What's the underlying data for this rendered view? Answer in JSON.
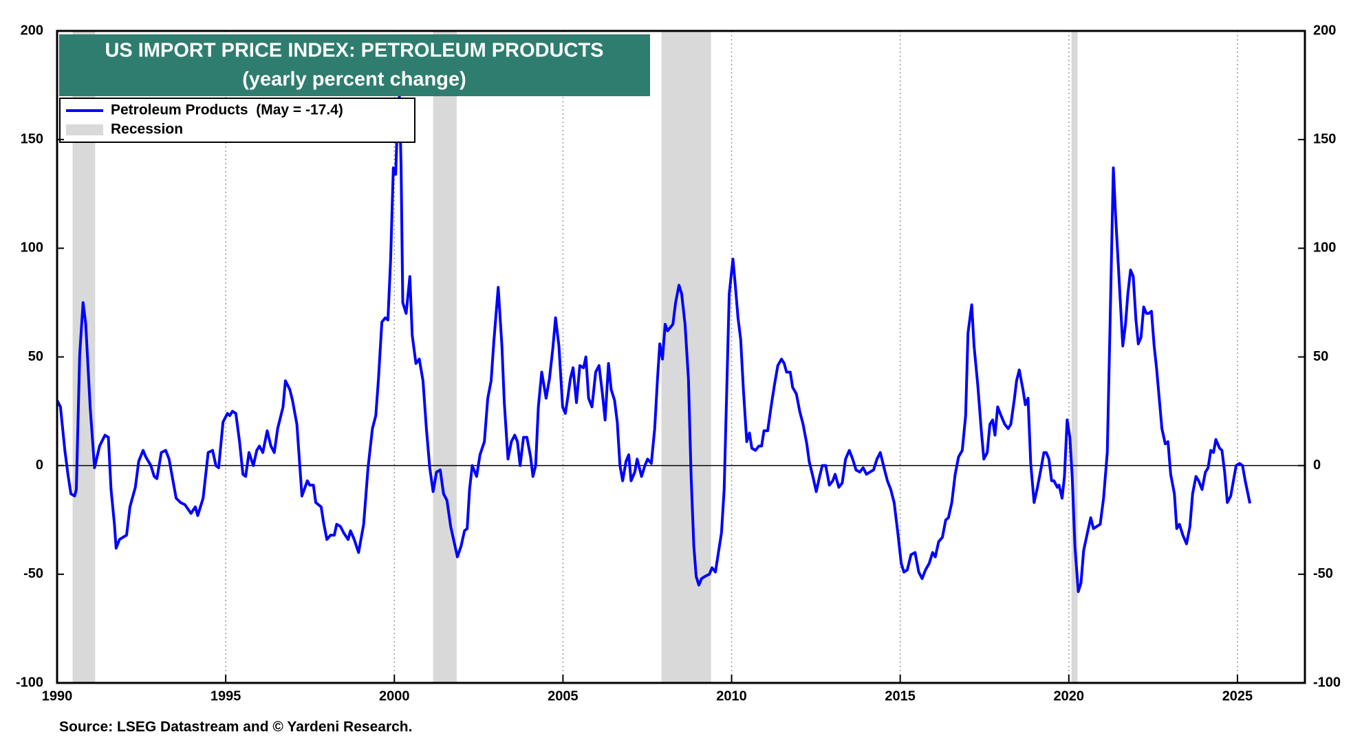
{
  "chart_data": {
    "type": "line",
    "title": "US IMPORT PRICE INDEX: PETROLEUM PRODUCTS",
    "subtitle": "(yearly percent change)",
    "source": "Source: LSEG Datastream and © Yardeni Research.",
    "title_color": "#2e7d6e",
    "grid": "x",
    "xlim": [
      1990,
      2027
    ],
    "xticks": [
      1990,
      1995,
      2000,
      2005,
      2010,
      2015,
      2020,
      2025
    ],
    "ylim": [
      -100,
      200
    ],
    "yticks": [
      -100,
      -50,
      0,
      50,
      100,
      150,
      200
    ],
    "y2lim": [
      -100,
      200
    ],
    "y2ticks": [
      -100,
      -50,
      0,
      50,
      100,
      150,
      200
    ],
    "recessions": {
      "name": "Recession",
      "color": "#d9d9d9",
      "ranges": [
        [
          1990.46,
          1991.13
        ],
        [
          2001.15,
          2001.85
        ],
        [
          2007.92,
          2009.39
        ],
        [
          2020.08,
          2020.26
        ]
      ]
    },
    "x": [
      1990.0,
      1990.1,
      1990.23,
      1990.33,
      1990.41,
      1990.52,
      1990.57,
      1990.67,
      1990.77,
      1990.85,
      1990.98,
      1991.11,
      1991.26,
      1991.42,
      1991.52,
      1991.6,
      1991.7,
      1991.75,
      1991.85,
      1992.06,
      1992.16,
      1992.32,
      1992.42,
      1992.55,
      1992.63,
      1992.78,
      1992.88,
      1992.96,
      1993.09,
      1993.22,
      1993.32,
      1993.53,
      1993.66,
      1993.79,
      1993.97,
      1994.1,
      1994.17,
      1994.33,
      1994.48,
      1994.61,
      1994.71,
      1994.79,
      1994.92,
      1995.05,
      1995.12,
      1995.2,
      1995.3,
      1995.41,
      1995.51,
      1995.59,
      1995.69,
      1995.82,
      1995.92,
      1996.0,
      1996.1,
      1996.23,
      1996.34,
      1996.44,
      1996.54,
      1996.7,
      1996.77,
      1996.9,
      1996.98,
      1997.11,
      1997.26,
      1997.42,
      1997.49,
      1997.6,
      1997.67,
      1997.83,
      1997.9,
      1998.0,
      1998.11,
      1998.22,
      1998.29,
      1998.4,
      1998.5,
      1998.63,
      1998.7,
      1998.81,
      1998.94,
      1999.09,
      1999.22,
      1999.35,
      1999.45,
      1999.53,
      1999.63,
      1999.73,
      1999.81,
      1999.89,
      1999.97,
      2000.04,
      2000.1,
      2000.15,
      2000.2,
      2000.25,
      2000.35,
      2000.46,
      2000.53,
      2000.64,
      2000.74,
      2000.85,
      2000.95,
      2001.05,
      2001.15,
      2001.25,
      2001.36,
      2001.46,
      2001.56,
      2001.67,
      2001.87,
      2001.98,
      2002.08,
      2002.16,
      2002.23,
      2002.31,
      2002.44,
      2002.54,
      2002.67,
      2002.77,
      2002.87,
      2002.95,
      2003.08,
      2003.19,
      2003.26,
      2003.37,
      2003.47,
      2003.57,
      2003.65,
      2003.73,
      2003.83,
      2003.93,
      2004.04,
      2004.11,
      2004.19,
      2004.27,
      2004.37,
      2004.5,
      2004.6,
      2004.7,
      2004.78,
      2004.88,
      2004.99,
      2005.07,
      2005.14,
      2005.22,
      2005.3,
      2005.4,
      2005.5,
      2005.61,
      2005.68,
      2005.76,
      2005.86,
      2005.97,
      2006.07,
      2006.17,
      2006.25,
      2006.35,
      2006.43,
      2006.53,
      2006.61,
      2006.69,
      2006.77,
      2006.87,
      2006.95,
      2007.02,
      2007.13,
      2007.2,
      2007.33,
      2007.43,
      2007.51,
      2007.62,
      2007.72,
      2007.8,
      2007.87,
      2007.95,
      2008.03,
      2008.1,
      2008.26,
      2008.34,
      2008.44,
      2008.52,
      2008.62,
      2008.72,
      2008.8,
      2008.88,
      2008.95,
      2009.03,
      2009.11,
      2009.21,
      2009.34,
      2009.42,
      2009.52,
      2009.6,
      2009.7,
      2009.78,
      2009.86,
      2009.93,
      2010.04,
      2010.11,
      2010.19,
      2010.27,
      2010.35,
      2010.45,
      2010.53,
      2010.6,
      2010.71,
      2010.81,
      2010.89,
      2010.96,
      2011.07,
      2011.17,
      2011.27,
      2011.37,
      2011.48,
      2011.56,
      2011.63,
      2011.74,
      2011.81,
      2011.92,
      2012.02,
      2012.12,
      2012.23,
      2012.3,
      2012.41,
      2012.51,
      2012.61,
      2012.69,
      2012.79,
      2012.9,
      2013.0,
      2013.07,
      2013.18,
      2013.28,
      2013.38,
      2013.49,
      2013.59,
      2013.69,
      2013.8,
      2013.9,
      2014.0,
      2014.1,
      2014.21,
      2014.31,
      2014.41,
      2014.52,
      2014.62,
      2014.72,
      2014.82,
      2014.93,
      2015.03,
      2015.11,
      2015.21,
      2015.32,
      2015.44,
      2015.55,
      2015.65,
      2015.75,
      2015.86,
      2015.96,
      2016.04,
      2016.14,
      2016.25,
      2016.35,
      2016.43,
      2016.53,
      2016.63,
      2016.73,
      2016.84,
      2016.94,
      2017.01,
      2017.12,
      2017.19,
      2017.3,
      2017.4,
      2017.48,
      2017.58,
      2017.66,
      2017.74,
      2017.81,
      2017.89,
      2017.99,
      2018.1,
      2018.2,
      2018.28,
      2018.38,
      2018.45,
      2018.53,
      2018.64,
      2018.71,
      2018.79,
      2018.87,
      2018.97,
      2019.07,
      2019.18,
      2019.26,
      2019.33,
      2019.41,
      2019.49,
      2019.56,
      2019.66,
      2019.71,
      2019.8,
      2019.87,
      2019.95,
      2020.03,
      2020.1,
      2020.18,
      2020.28,
      2020.36,
      2020.44,
      2020.55,
      2020.65,
      2020.73,
      2020.83,
      2020.93,
      2021.03,
      2021.14,
      2021.22,
      2021.32,
      2021.39,
      2021.5,
      2021.6,
      2021.68,
      2021.75,
      2021.83,
      2021.91,
      2021.99,
      2022.06,
      2022.14,
      2022.22,
      2022.3,
      2022.37,
      2022.45,
      2022.53,
      2022.6,
      2022.68,
      2022.76,
      2022.86,
      2022.94,
      2023.02,
      2023.13,
      2023.2,
      2023.28,
      2023.38,
      2023.49,
      2023.59,
      2023.67,
      2023.77,
      2023.85,
      2023.95,
      2024.05,
      2024.13,
      2024.21,
      2024.29,
      2024.36,
      2024.47,
      2024.54,
      2024.62,
      2024.7,
      2024.8,
      2024.88,
      2024.96,
      2025.06,
      2025.15,
      2025.23,
      2025.37
    ],
    "series": [
      {
        "name": "Petroleum Products  (May = -17.4)",
        "color": "#0000ff",
        "values": [
          30,
          27,
          7,
          -5,
          -13,
          -14,
          -11,
          51,
          75,
          65,
          27,
          -1,
          9,
          14,
          13,
          -11,
          -27,
          -38,
          -34,
          -32,
          -19,
          -10,
          2,
          7,
          4,
          0,
          -5,
          -6,
          6,
          7,
          3,
          -15,
          -17,
          -18,
          -22,
          -19,
          -23,
          -15,
          6,
          7,
          0,
          -1,
          20,
          24,
          23,
          25,
          24,
          11,
          -4,
          -5,
          6,
          0,
          7,
          9,
          6,
          16,
          9,
          6,
          17,
          27,
          39,
          35,
          30,
          19,
          -14,
          -7,
          -9,
          -9,
          -17,
          -19,
          -26,
          -34,
          -32,
          -32,
          -27,
          -28,
          -31,
          -34,
          -30,
          -34,
          -40,
          -27,
          -1,
          17,
          23,
          40,
          66,
          68,
          67,
          95,
          137,
          134,
          162,
          170,
          138,
          75,
          70,
          87,
          60,
          47,
          49,
          39,
          17,
          -1,
          -12,
          -3,
          -2,
          -13,
          -16,
          -28,
          -42,
          -37,
          -30,
          -29,
          -11,
          0,
          -5,
          5,
          11,
          31,
          39,
          57,
          82,
          55,
          29,
          3,
          11,
          14,
          11,
          0,
          13,
          13,
          4,
          -5,
          0,
          27,
          43,
          31,
          40,
          54,
          68,
          55,
          27,
          24,
          31,
          40,
          45,
          29,
          46,
          45,
          50,
          31,
          27,
          43,
          46,
          33,
          21,
          47,
          35,
          30,
          20,
          0,
          -7,
          2,
          5,
          -7,
          -3,
          3,
          -5,
          0,
          3,
          1,
          17,
          39,
          56,
          49,
          65,
          62,
          65,
          75,
          83,
          79,
          65,
          40,
          -5,
          -37,
          -51,
          -55,
          -52,
          -51,
          -50,
          -47,
          -49,
          -41,
          -31,
          -11,
          37,
          79,
          95,
          83,
          68,
          58,
          35,
          11,
          15,
          8,
          7,
          9,
          9,
          16,
          16,
          27,
          37,
          46,
          49,
          47,
          43,
          43,
          36,
          33,
          25,
          19,
          10,
          2,
          -5,
          -12,
          -5,
          0,
          0,
          -9,
          -7,
          -4,
          -10,
          -8,
          3,
          7,
          3,
          -2,
          -3,
          -1,
          -4,
          -3,
          -2,
          3,
          6,
          -1,
          -7,
          -11,
          -17,
          -31,
          -45,
          -49,
          -48,
          -41,
          -40,
          -49,
          -52,
          -48,
          -45,
          -40,
          -42,
          -35,
          -33,
          -25,
          -24,
          -17,
          -4,
          4,
          7,
          23,
          61,
          74,
          55,
          37,
          17,
          3,
          6,
          19,
          21,
          14,
          27,
          23,
          19,
          17,
          19,
          30,
          39,
          44,
          35,
          28,
          31,
          1,
          -17,
          -10,
          -1,
          6,
          6,
          3,
          -7,
          -7,
          -10,
          -9,
          -15,
          -5,
          21,
          13,
          -5,
          -37,
          -58,
          -54,
          -39,
          -31,
          -24,
          -29,
          -28,
          -27,
          -15,
          6,
          63,
          137,
          114,
          83,
          55,
          65,
          79,
          90,
          87,
          67,
          56,
          59,
          73,
          70,
          70,
          71,
          55,
          45,
          31,
          17,
          10,
          11,
          -4,
          -13,
          -29,
          -27,
          -32,
          -36,
          -28,
          -13,
          -5,
          -7,
          -11,
          -3,
          -1,
          7,
          6,
          12,
          8,
          7,
          -3,
          -17,
          -14,
          -7,
          0,
          1,
          0,
          -7,
          -17.4
        ]
      }
    ]
  }
}
